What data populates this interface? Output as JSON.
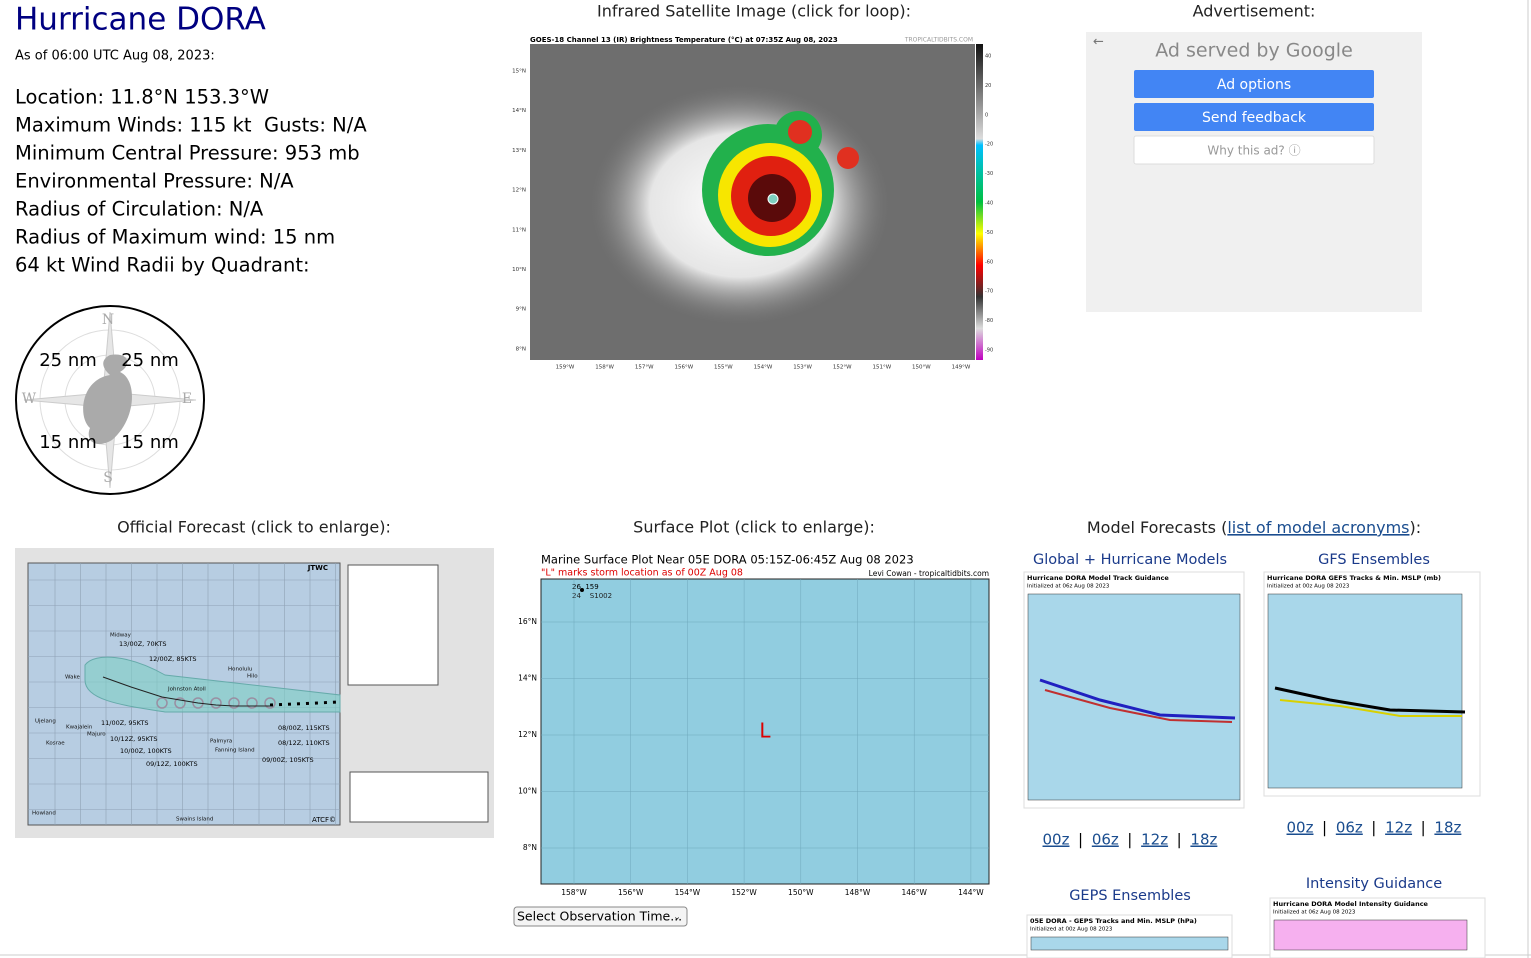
{
  "header": {
    "title": "Hurricane DORA",
    "as_of": "As of 06:00 UTC Aug 08, 2023:"
  },
  "storm_info": [
    "Location: 11.8°N 153.3°W",
    "Maximum Winds: 115 kt  Gusts: N/A",
    "Minimum Central Pressure: 953 mb",
    "Environmental Pressure: N/A",
    "Radius of Circulation: N/A",
    "Radius of Maximum wind: 15 nm",
    "64 kt Wind Radii by Quadrant:"
  ],
  "wind_radii": {
    "nw": "25 nm",
    "ne": "25 nm",
    "sw": "15 nm",
    "se": "15 nm",
    "compass": [
      "N",
      "E",
      "S",
      "W"
    ]
  },
  "satellite": {
    "heading": "Infrared Satellite Image (click for loop):",
    "title": "GOES-18 Channel 13 (IR) Brightness Temperature (°C) at 07:35Z Aug 08, 2023",
    "credit": "TROPICALTIDBITS.COM",
    "lat_labels": [
      "15°N",
      "14°N",
      "13°N",
      "12°N",
      "11°N",
      "10°N",
      "9°N",
      "8°N"
    ],
    "lon_labels": [
      "159°W",
      "158°W",
      "157°W",
      "156°W",
      "155°W",
      "154°W",
      "153°W",
      "152°W",
      "151°W",
      "150°W",
      "149°W"
    ],
    "colorbar_labels": [
      "40",
      "20",
      "0",
      "-20",
      "-30",
      "-40",
      "-50",
      "-60",
      "-70",
      "-80",
      "-90"
    ]
  },
  "advertisement": {
    "heading": "Advertisement:",
    "served_by": "Ad served by Google",
    "buttons": [
      "Ad options",
      "Send feedback",
      "Why this ad? ⓘ"
    ]
  },
  "official_forecast": {
    "heading": "Official Forecast (click to enlarge):",
    "agency": "JTWC",
    "forecast_labels": [
      "13/00Z, 70KTS",
      "12/00Z, 85KTS",
      "11/00Z, 95KTS",
      "10/12Z, 95KTS",
      "10/00Z, 100KTS",
      "09/12Z, 100KTS",
      "09/00Z, 105KTS",
      "08/12Z, 110KTS",
      "08/00Z, 115KTS"
    ],
    "places": [
      "Midway",
      "Wake",
      "Johnston Atoll",
      "Honolulu",
      "Hilo",
      "Ujelang",
      "Kwajalein",
      "Majuro",
      "Kosrae",
      "Palmyra",
      "Fanning Island",
      "Howland",
      "Swains Island"
    ],
    "footer": "ATCF©"
  },
  "surface_plot": {
    "heading": "Surface Plot (click to enlarge):",
    "title": "Marine Surface Plot Near 05E DORA 05:15Z-06:45Z Aug 08 2023",
    "note": "\"L\" marks storm location as of 00Z Aug 08",
    "credit": "Levi Cowan - tropicaltidbits.com",
    "storm_marker": "L",
    "lat_labels": [
      "16°N",
      "14°N",
      "12°N",
      "10°N",
      "8°N"
    ],
    "lon_labels": [
      "158°W",
      "156°W",
      "154°W",
      "152°W",
      "150°W",
      "148°W",
      "146°W",
      "144°W"
    ],
    "select": "Select Observation Time..."
  },
  "model_forecasts": {
    "heading_prefix": "Model Forecasts (",
    "heading_link": "list of model acronyms",
    "heading_suffix": "):",
    "panels": [
      {
        "heading": "Global + Hurricane Models",
        "title": "Hurricane DORA Model Track Guidance",
        "init": "Initialized at 06z Aug 08 2023",
        "times": [
          "00z",
          "06z",
          "12z",
          "18z"
        ]
      },
      {
        "heading": "GFS Ensembles",
        "title": "Hurricane DORA GEFS Tracks & Min. MSLP (mb)",
        "init": "Initialized at 00z Aug 08 2023",
        "times": [
          "00z",
          "06z",
          "12z",
          "18z"
        ]
      },
      {
        "heading": "GEPS Ensembles",
        "title": "05E DORA - GEPS Tracks and Min. MSLP (hPa)",
        "init": "Initialized at 00z Aug 08 2023"
      },
      {
        "heading": "Intensity Guidance",
        "title": "Hurricane DORA Model Intensity Guidance",
        "init": "Initialized at 06z Aug 08 2023"
      }
    ]
  }
}
